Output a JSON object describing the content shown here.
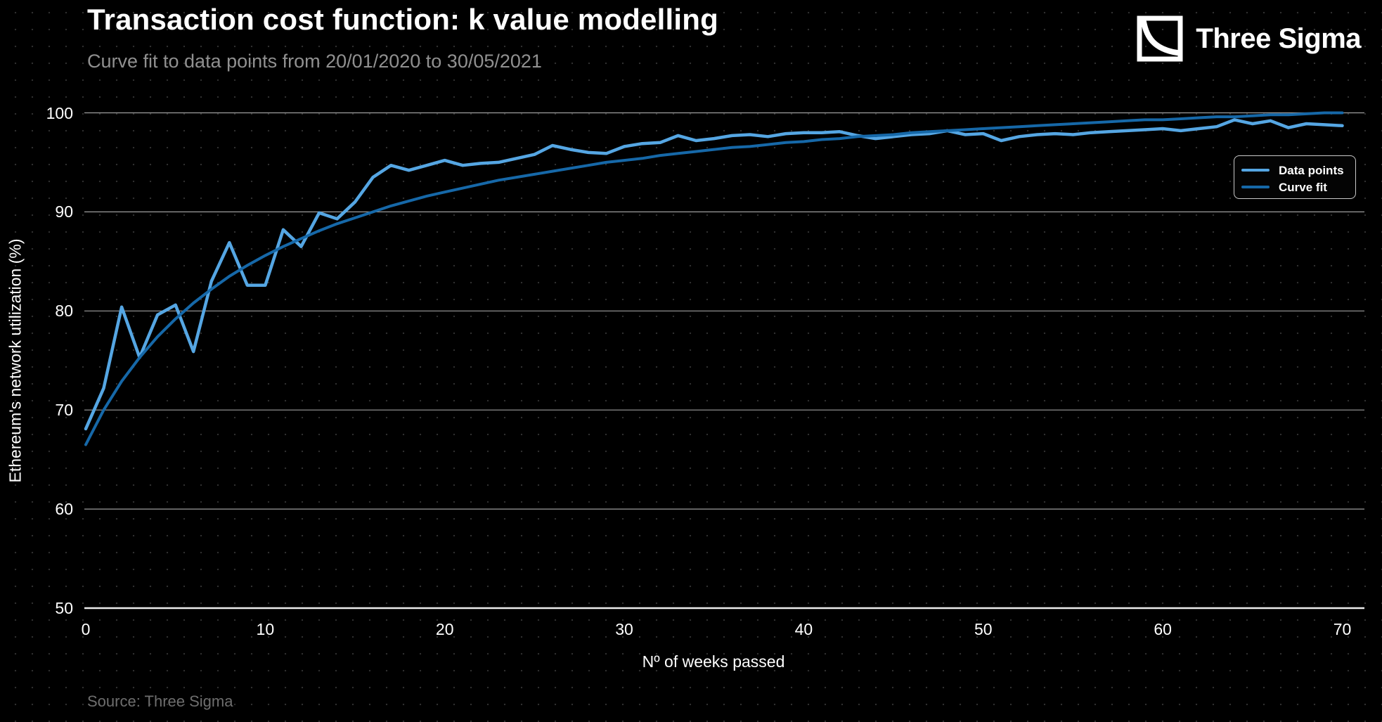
{
  "header": {
    "title": "Transaction cost function: k value modelling",
    "subtitle": "Curve fit to data points from 20/01/2020 to 30/05/2021",
    "brand_name": "Three Sigma"
  },
  "footer": {
    "source": "Source: Three Sigma"
  },
  "colors": {
    "background": "#000000",
    "dot_grid": "#2f2f2f",
    "gridline": "#9e9e9e",
    "axis_line": "#ececec",
    "title_text": "#ffffff",
    "subtitle_text": "#909090",
    "source_text": "#6e6e6e",
    "data_points_line": "#55a6e3",
    "curve_fit_line": "#1668a8"
  },
  "chart_data": {
    "type": "line",
    "title": "Transaction cost function: k value modelling",
    "subtitle": "Curve fit to data points from 20/01/2020 to 30/05/2021",
    "xlabel": "Nº of weeks passed",
    "ylabel": "Ethereum's network utilization (%)",
    "xlim": [
      0,
      70
    ],
    "ylim": [
      50,
      100
    ],
    "x_ticks": [
      0,
      10,
      20,
      30,
      40,
      50,
      60,
      70
    ],
    "y_ticks": [
      50,
      60,
      70,
      80,
      90,
      100
    ],
    "grid": "horizontal-only",
    "legend_position": "upper-right",
    "x": [
      0,
      1,
      2,
      3,
      4,
      5,
      6,
      7,
      8,
      9,
      10,
      11,
      12,
      13,
      14,
      15,
      16,
      17,
      18,
      19,
      20,
      21,
      22,
      23,
      24,
      25,
      26,
      27,
      28,
      29,
      30,
      31,
      32,
      33,
      34,
      35,
      36,
      37,
      38,
      39,
      40,
      41,
      42,
      43,
      44,
      45,
      46,
      47,
      48,
      49,
      50,
      51,
      52,
      53,
      54,
      55,
      56,
      57,
      58,
      59,
      60,
      61,
      62,
      63,
      64,
      65,
      66,
      67,
      68,
      69,
      70
    ],
    "series": [
      {
        "name": "Data points",
        "color": "#55a6e3",
        "width": 4.5,
        "values": [
          68.1,
          72.2,
          80.4,
          75.3,
          79.6,
          80.6,
          75.9,
          83.0,
          86.9,
          82.6,
          82.6,
          88.2,
          86.5,
          89.9,
          89.3,
          91.0,
          93.5,
          94.7,
          94.2,
          94.7,
          95.2,
          94.7,
          94.9,
          95.0,
          95.4,
          95.8,
          96.7,
          96.3,
          96.0,
          95.9,
          96.6,
          96.9,
          97.0,
          97.7,
          97.2,
          97.4,
          97.7,
          97.8,
          97.6,
          97.9,
          98.0,
          98.0,
          98.1,
          97.7,
          97.4,
          97.6,
          97.8,
          97.9,
          98.2,
          97.8,
          97.9,
          97.2,
          97.6,
          97.8,
          97.9,
          97.8,
          98.0,
          98.1,
          98.2,
          98.3,
          98.4,
          98.2,
          98.4,
          98.6,
          99.3,
          98.9,
          99.2,
          98.5,
          98.9,
          98.8,
          98.7
        ]
      },
      {
        "name": "Curve fit",
        "color": "#1668a8",
        "width": 4,
        "values": [
          66.5,
          70.0,
          72.9,
          75.3,
          77.4,
          79.2,
          80.8,
          82.2,
          83.5,
          84.6,
          85.6,
          86.5,
          87.3,
          88.1,
          88.8,
          89.4,
          90.0,
          90.6,
          91.1,
          91.6,
          92.0,
          92.4,
          92.8,
          93.2,
          93.5,
          93.8,
          94.1,
          94.4,
          94.7,
          95.0,
          95.2,
          95.4,
          95.7,
          95.9,
          96.1,
          96.3,
          96.5,
          96.6,
          96.8,
          97.0,
          97.1,
          97.3,
          97.4,
          97.6,
          97.7,
          97.8,
          98.0,
          98.1,
          98.2,
          98.3,
          98.4,
          98.5,
          98.6,
          98.7,
          98.8,
          98.9,
          99.0,
          99.1,
          99.2,
          99.3,
          99.3,
          99.4,
          99.5,
          99.6,
          99.6,
          99.7,
          99.8,
          99.8,
          99.9,
          100.0,
          100.0
        ]
      }
    ]
  }
}
